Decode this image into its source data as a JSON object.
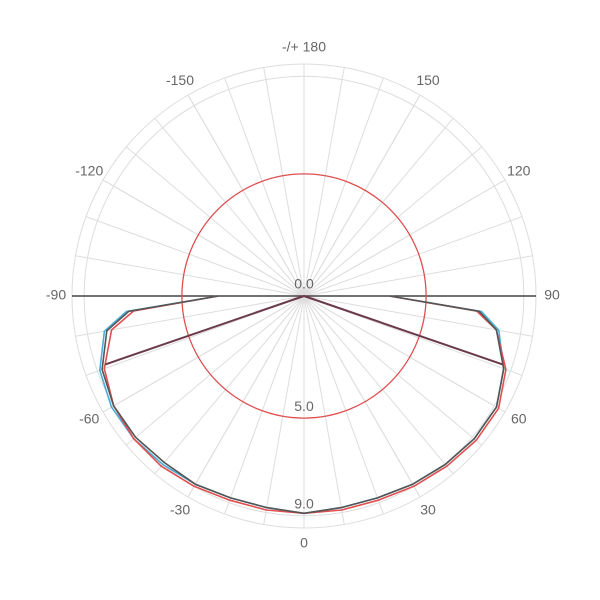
{
  "chart_data": {
    "type": "polar",
    "rlim": [
      0,
      9.5
    ],
    "rticks": [
      {
        "value": 0,
        "label": "0.0"
      },
      {
        "value": 5,
        "label": "5.0"
      },
      {
        "value": 9,
        "label": "9.0"
      }
    ],
    "angle_ticks": [
      -150,
      -120,
      -90,
      -60,
      -30,
      0,
      30,
      60,
      90,
      120,
      {
        "value": 150,
        "label": "150"
      },
      {
        "value": 180,
        "label": "-/+ 180"
      }
    ],
    "angle_grid_step": 10,
    "grid_color": "#dddddd",
    "reference_circle": {
      "value": 5,
      "color": "#e05050"
    },
    "series": [
      {
        "color": "#4aaed8",
        "x": [
          -90,
          -85,
          -80,
          -70,
          -60,
          -50,
          -40,
          -30,
          -20,
          -10,
          0,
          10,
          20,
          30,
          40,
          50,
          60,
          70,
          80,
          85,
          90
        ],
        "values": [
          3.5,
          7.3,
          8.3,
          8.9,
          9.1,
          9.1,
          9.0,
          8.9,
          8.8,
          8.8,
          8.9,
          8.8,
          8.8,
          8.9,
          9.0,
          9.1,
          9.1,
          8.7,
          8.1,
          7.3,
          3.5
        ]
      },
      {
        "color": "#e05050",
        "x": [
          -90,
          -85,
          -80,
          -70,
          -60,
          -50,
          -40,
          -30,
          -20,
          -10,
          0,
          10,
          20,
          30,
          40,
          50,
          60,
          70,
          80,
          85,
          90
        ],
        "values": [
          3.5,
          7.0,
          8.0,
          8.7,
          9.0,
          9.1,
          9.1,
          9.0,
          8.9,
          8.9,
          8.9,
          8.9,
          8.9,
          9.0,
          9.1,
          9.2,
          9.2,
          8.8,
          8.0,
          7.1,
          3.5
        ]
      },
      {
        "color": "#555555",
        "x": [
          -90,
          -85,
          -80,
          -70,
          -60,
          -50,
          -40,
          -30,
          -20,
          -10,
          0,
          10,
          20,
          30,
          40,
          50,
          60,
          70,
          80,
          85,
          90
        ],
        "values": [
          3.5,
          7.2,
          8.2,
          8.8,
          9.0,
          9.0,
          8.9,
          8.9,
          8.8,
          8.8,
          8.9,
          8.8,
          8.8,
          8.9,
          9.0,
          9.1,
          9.1,
          8.7,
          8.0,
          7.2,
          3.5
        ]
      }
    ],
    "beam_lines": {
      "color": "#6a3a4a",
      "x": [
        -71,
        0,
        71
      ],
      "values": [
        8.6,
        0,
        8.6
      ]
    }
  }
}
